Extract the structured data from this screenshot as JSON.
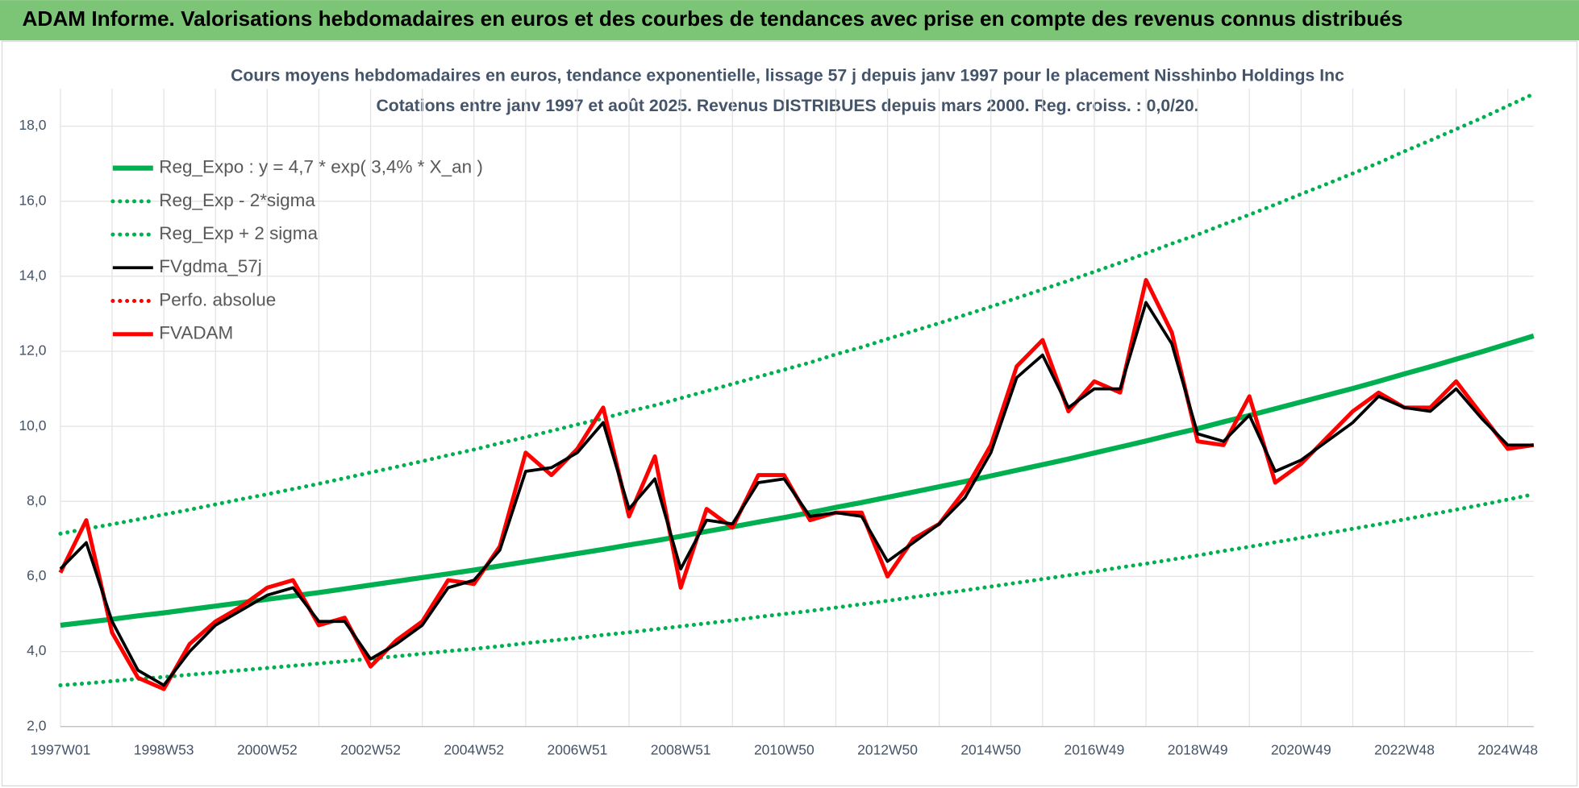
{
  "header": {
    "title": "ADAM Informe. Valorisations hebdomadaires en euros et des courbes de tendances avec prise en compte des revenus connus distribués"
  },
  "chart_data": {
    "type": "line",
    "title": "Cours moyens hebdomadaires en euros, tendance exponentielle, lissage 57 j depuis janv 1997 pour le placement Nisshinbo Holdings Inc",
    "subtitle": "Cotations entre janv 1997 et août 2025.  Revenus DISTRIBUES depuis mars 2000. Reg. croiss. : 0,0/20.",
    "categories": [
      "1997W01",
      null,
      null,
      null,
      "1998W53",
      null,
      null,
      null,
      "2000W52",
      null,
      null,
      null,
      "2002W52",
      null,
      null,
      null,
      "2004W52",
      null,
      null,
      null,
      "2006W51",
      null,
      null,
      null,
      "2008W51",
      null,
      null,
      null,
      "2010W50",
      null,
      null,
      null,
      "2012W50",
      null,
      null,
      null,
      "2014W50",
      null,
      null,
      null,
      "2016W49",
      null,
      null,
      null,
      "2018W49",
      null,
      null,
      null,
      "2020W49",
      null,
      null,
      null,
      "2022W48",
      null,
      null,
      null,
      "2024W48",
      null
    ],
    "ylim": [
      2,
      19
    ],
    "yticks": [
      {
        "value": 2,
        "label": "2,0"
      },
      {
        "value": 4,
        "label": "4,0"
      },
      {
        "value": 6,
        "label": "6,0"
      },
      {
        "value": 8,
        "label": "8,0"
      },
      {
        "value": 10,
        "label": "10,0"
      },
      {
        "value": 12,
        "label": "12,0"
      },
      {
        "value": 14,
        "label": "14,0"
      },
      {
        "value": 16,
        "label": "16,0"
      },
      {
        "value": 18,
        "label": "18,0"
      }
    ],
    "grid": true,
    "series": [
      {
        "name": "Reg_Expo : y = 4,7 * exp( 3,4% *  X_an )",
        "color": "#00b050",
        "style": "solid",
        "values": [
          4.7,
          4.78,
          4.86,
          4.95,
          5.03,
          5.12,
          5.21,
          5.3,
          5.39,
          5.48,
          5.57,
          5.67,
          5.77,
          5.87,
          5.97,
          6.07,
          6.17,
          6.28,
          6.39,
          6.5,
          6.61,
          6.72,
          6.84,
          6.95,
          7.07,
          7.2,
          7.32,
          7.45,
          7.57,
          7.7,
          7.84,
          7.97,
          8.11,
          8.25,
          8.39,
          8.53,
          8.68,
          8.83,
          8.98,
          9.13,
          9.29,
          9.45,
          9.61,
          9.78,
          9.94,
          10.12,
          10.29,
          10.47,
          10.65,
          10.83,
          11.01,
          11.2,
          11.4,
          11.59,
          11.79,
          11.99,
          12.2,
          12.41
        ]
      },
      {
        "name": "Reg_Exp - 2*sigma",
        "color": "#00b050",
        "style": "dotted",
        "values": [
          3.1,
          3.15,
          3.21,
          3.27,
          3.32,
          3.38,
          3.44,
          3.5,
          3.56,
          3.62,
          3.68,
          3.74,
          3.81,
          3.87,
          3.94,
          4.01,
          4.07,
          4.14,
          4.22,
          4.29,
          4.36,
          4.44,
          4.51,
          4.59,
          4.67,
          4.75,
          4.83,
          4.92,
          5.0,
          5.08,
          5.17,
          5.26,
          5.35,
          5.45,
          5.54,
          5.63,
          5.73,
          5.83,
          5.93,
          6.03,
          6.13,
          6.24,
          6.34,
          6.45,
          6.56,
          6.68,
          6.79,
          6.91,
          7.03,
          7.15,
          7.27,
          7.39,
          7.52,
          7.65,
          7.78,
          7.91,
          8.05,
          8.19
        ]
      },
      {
        "name": "Reg_Exp + 2 sigma",
        "color": "#00b050",
        "style": "dotted",
        "values": [
          7.14,
          7.27,
          7.39,
          7.52,
          7.65,
          7.78,
          7.92,
          8.06,
          8.19,
          8.33,
          8.47,
          8.62,
          8.77,
          8.92,
          9.07,
          9.23,
          9.38,
          9.55,
          9.71,
          9.88,
          10.05,
          10.21,
          10.4,
          10.56,
          10.75,
          10.94,
          11.13,
          11.32,
          11.51,
          11.7,
          11.92,
          12.11,
          12.33,
          12.54,
          12.75,
          12.97,
          13.19,
          13.42,
          13.65,
          13.88,
          14.12,
          14.36,
          14.61,
          14.87,
          15.11,
          15.38,
          15.64,
          15.91,
          16.19,
          16.46,
          16.74,
          17.02,
          17.33,
          17.62,
          17.92,
          18.22,
          18.54,
          18.86
        ]
      },
      {
        "name": "FVgdma_57j",
        "color": "#000000",
        "style": "solid",
        "values": [
          6.2,
          6.9,
          4.8,
          3.5,
          3.1,
          4.0,
          4.7,
          5.1,
          5.5,
          5.7,
          4.8,
          4.8,
          3.8,
          4.2,
          4.7,
          5.7,
          5.9,
          6.7,
          8.8,
          8.9,
          9.3,
          10.1,
          7.8,
          8.6,
          6.2,
          7.5,
          7.4,
          8.5,
          8.6,
          7.6,
          7.7,
          7.6,
          6.4,
          6.9,
          7.4,
          8.1,
          9.3,
          11.3,
          11.9,
          10.5,
          11.0,
          11.0,
          13.3,
          12.2,
          9.8,
          9.6,
          10.3,
          8.8,
          9.1,
          9.6,
          10.1,
          10.8,
          10.5,
          10.4,
          11.0,
          10.2,
          9.5,
          9.5
        ]
      },
      {
        "name": "Perfo. absolue",
        "color": "#ff0000",
        "style": "dotted",
        "values": [
          null,
          null,
          null,
          null,
          null,
          null,
          null,
          null,
          null,
          null,
          null,
          null,
          null,
          null,
          null,
          null,
          null,
          null,
          null,
          null,
          null,
          null,
          null,
          null,
          null,
          null,
          null,
          null,
          null,
          null,
          null,
          null,
          null,
          null,
          null,
          null,
          null,
          null,
          null,
          null,
          null,
          null,
          null,
          null,
          null,
          null,
          null,
          null,
          null,
          null,
          null,
          null,
          null,
          null,
          null,
          null,
          null,
          null
        ]
      },
      {
        "name": "FVADAM",
        "color": "#ff0000",
        "style": "solid",
        "values": [
          6.1,
          7.5,
          4.5,
          3.3,
          3.0,
          4.2,
          4.8,
          5.2,
          5.7,
          5.9,
          4.7,
          4.9,
          3.6,
          4.3,
          4.8,
          5.9,
          5.8,
          6.8,
          9.3,
          8.7,
          9.4,
          10.5,
          7.6,
          9.2,
          5.7,
          7.8,
          7.3,
          8.7,
          8.7,
          7.5,
          7.7,
          7.7,
          6.0,
          7.0,
          7.4,
          8.3,
          9.5,
          11.6,
          12.3,
          10.4,
          11.2,
          10.9,
          13.9,
          12.5,
          9.6,
          9.5,
          10.8,
          8.5,
          9.0,
          9.7,
          10.4,
          10.9,
          10.5,
          10.5,
          11.2,
          10.3,
          9.4,
          9.5
        ]
      }
    ]
  }
}
